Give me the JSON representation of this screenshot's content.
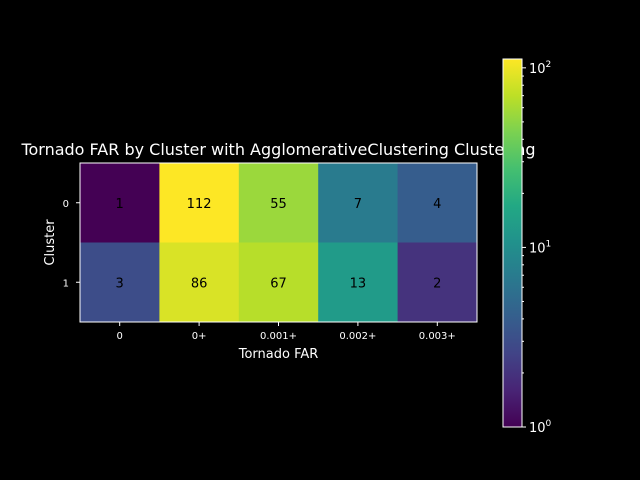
{
  "chart_data": {
    "type": "heatmap",
    "title": "Tornado FAR by Cluster with AgglomerativeClustering Clustering",
    "xlabel": "Tornado FAR",
    "ylabel": "Cluster",
    "x_categories": [
      "0",
      "0+",
      "0.001+",
      "0.002+",
      "0.003+"
    ],
    "y_categories": [
      "0",
      "1"
    ],
    "values": [
      [
        1,
        112,
        55,
        7,
        4
      ],
      [
        3,
        86,
        67,
        13,
        2
      ]
    ],
    "colorbar": {
      "scale": "log",
      "range": [
        1,
        112
      ],
      "colormap": "viridis",
      "tick_labels": [
        {
          "value": 1,
          "base": "10",
          "exp": "0"
        },
        {
          "value": 10,
          "base": "10",
          "exp": "1"
        },
        {
          "value": 100,
          "base": "10",
          "exp": "2"
        }
      ]
    },
    "grid": false,
    "legend": "colorbar-right"
  },
  "colors": {
    "background": "#000000",
    "foreground": "#ffffff",
    "annotation_text": "#000000"
  }
}
